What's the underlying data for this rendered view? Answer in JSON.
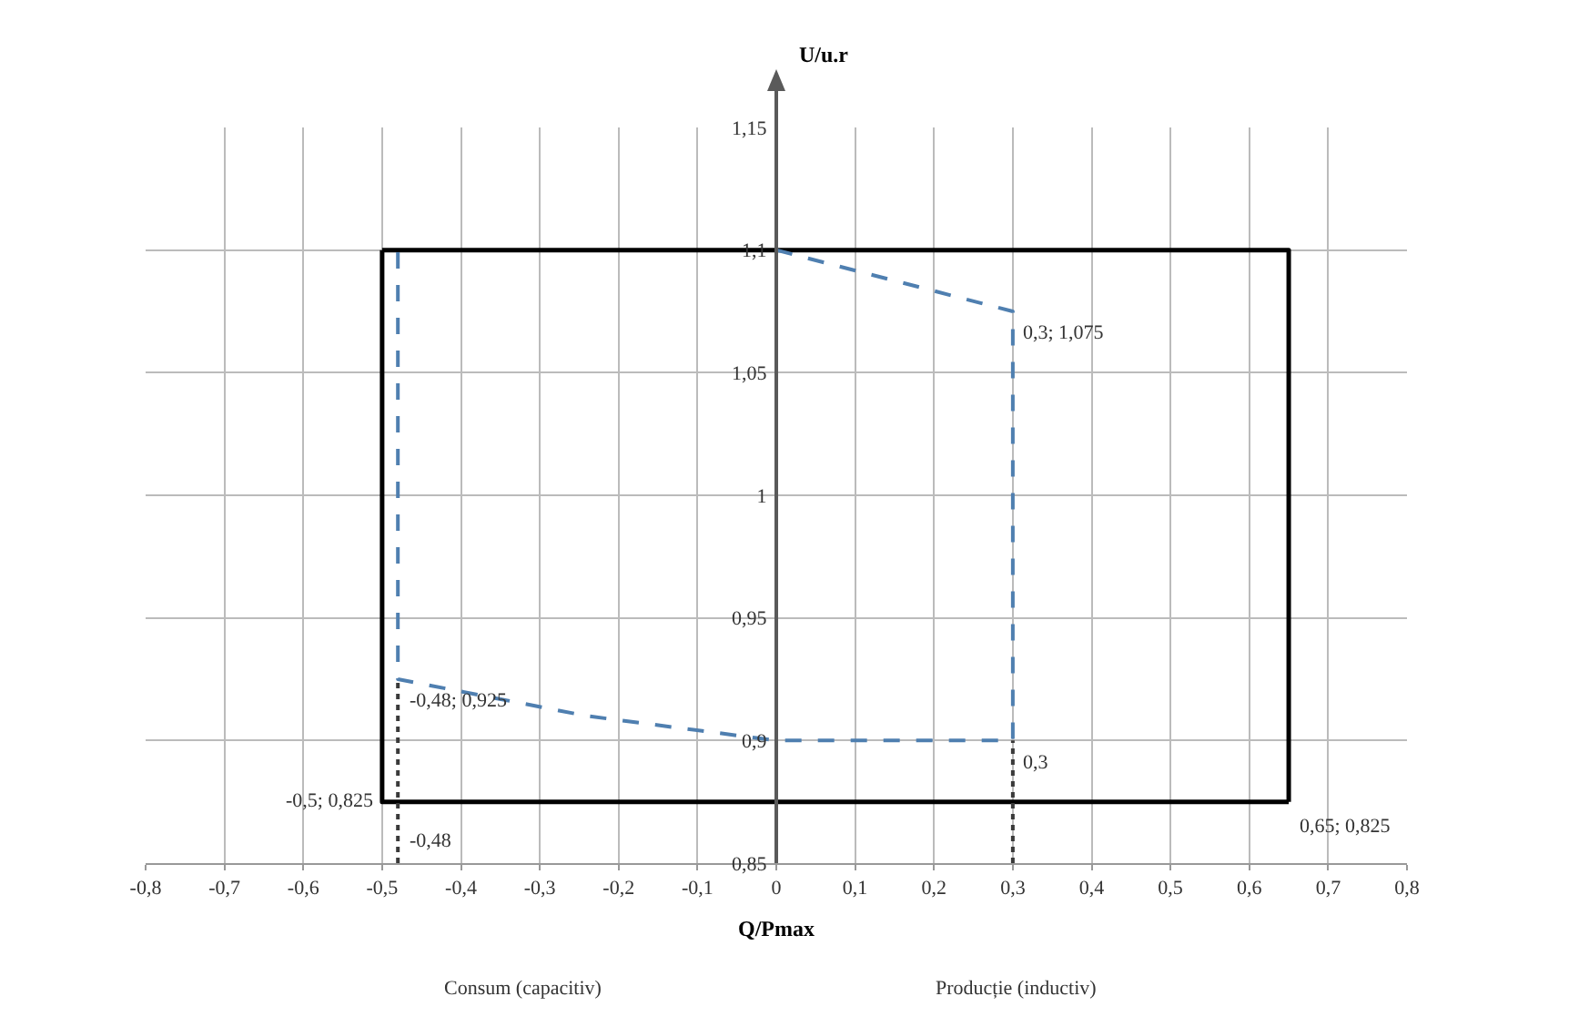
{
  "chart_data": {
    "type": "line",
    "ylabel": "U/u.r",
    "xlabel": "Q/Pmax",
    "xlim": [
      -0.8,
      0.8
    ],
    "ylim": [
      0.85,
      1.15
    ],
    "xticks": [
      {
        "value": -0.8,
        "label": "-0,8"
      },
      {
        "value": -0.7,
        "label": "-0,7"
      },
      {
        "value": -0.6,
        "label": "-0,6"
      },
      {
        "value": -0.5,
        "label": "-0,5"
      },
      {
        "value": -0.4,
        "label": "-0,4"
      },
      {
        "value": -0.3,
        "label": "-0,3"
      },
      {
        "value": -0.2,
        "label": "-0,2"
      },
      {
        "value": -0.1,
        "label": "-0,1"
      },
      0,
      {
        "value": 0.1,
        "label": "0,1"
      },
      {
        "value": 0.2,
        "label": "0,2"
      },
      {
        "value": 0.3,
        "label": "0,3"
      },
      {
        "value": 0.4,
        "label": "0,4"
      },
      {
        "value": 0.5,
        "label": "0,5"
      },
      {
        "value": 0.6,
        "label": "0,6"
      },
      {
        "value": 0.7,
        "label": "0,7"
      },
      {
        "value": 0.8,
        "label": "0,8"
      }
    ],
    "yticks": [
      {
        "value": 0.85,
        "label": "0,85"
      },
      {
        "value": 0.9,
        "label": "0,9"
      },
      {
        "value": 0.95,
        "label": "0,95"
      },
      1,
      {
        "value": 1.05,
        "label": "1,05"
      },
      {
        "value": 1.1,
        "label": "1,1"
      },
      {
        "value": 1.15,
        "label": "1,15"
      }
    ],
    "grid": true,
    "marker": "none",
    "series": [
      {
        "color": "#000000",
        "line_style": "solid",
        "x": [
          0.65,
          -0.5,
          -0.5
        ],
        "values": [
          0.875,
          0.875,
          1.1
        ]
      },
      {
        "color": "#000000",
        "line_style": "solid",
        "x": [
          -0.5,
          0.65,
          0.65
        ],
        "values": [
          1.1,
          1.1,
          0.875
        ]
      },
      {
        "color": "#4f7fb0",
        "line_style": "dashed",
        "x": [
          0,
          0.3,
          0.3,
          0,
          -0.24,
          -0.48,
          -0.48
        ],
        "values": [
          1.1,
          1.075,
          0.9,
          0.9,
          0.91,
          0.925,
          1.1
        ]
      },
      {
        "color": "#3a3a3a",
        "line_style": "dotted",
        "x": [
          -0.48,
          -0.48,
          null,
          0.3,
          0.3
        ],
        "values": [
          0.85,
          0.925,
          null,
          0.85,
          0.9
        ]
      }
    ],
    "annotations": [
      {
        "text": "0,3; 1,075",
        "x": 0.3,
        "y": 1.075
      },
      {
        "text": "-0,48; 0,925",
        "x": -0.48,
        "y": 0.925
      },
      {
        "text": "0,3",
        "x": 0.3,
        "y": 0.9
      },
      {
        "text": "-0,5; 0,825",
        "x": -0.5,
        "y": 0.875
      },
      {
        "text": "-0,48",
        "x": -0.48,
        "y": 0.85
      },
      {
        "text": "0,65; 0,825",
        "x": 0.65,
        "y": 0.875
      },
      "Consum (capacitiv)",
      "Producție (inductiv)"
    ]
  }
}
